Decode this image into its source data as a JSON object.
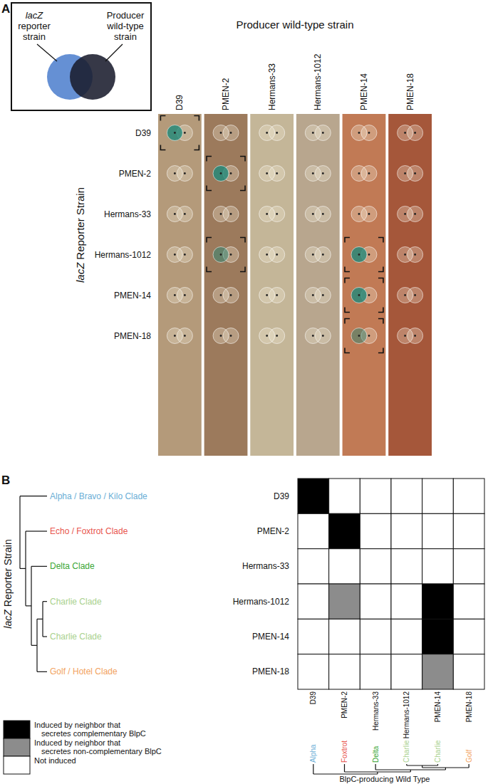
{
  "panel_a": {
    "label": "A",
    "inset_reporter": [
      "lacZ",
      "reporter",
      "strain"
    ],
    "inset_producer": [
      "Producer",
      "wild-type",
      "strain"
    ],
    "column_title": "Producer wild-type strain",
    "row_title": [
      "lacZ",
      "Reporter Strain"
    ]
  },
  "chart_data": {
    "type": "heatmap",
    "panel_label": "B",
    "rows": [
      "D39",
      "PMEN-2",
      "Hermans-33",
      "Hermans-1012",
      "PMEN-14",
      "PMEN-18"
    ],
    "columns": [
      "D39",
      "PMEN-2",
      "Hermans-33",
      "Hermans-1012",
      "PMEN-14",
      "PMEN-18"
    ],
    "row_title": [
      "lacZ",
      "Reporter Strain"
    ],
    "column_title": "BlpC-producing Wild Type",
    "row_clades": [
      {
        "name": "Alpha / Bravo / Kilo Clade",
        "color": "#6aaed6"
      },
      {
        "name": "Echo / Foxtrot Clade",
        "color": "#e8554e"
      },
      {
        "name": "Delta Clade",
        "color": "#3aa635"
      },
      {
        "name": "Charlie Clade",
        "color": "#a9d18e"
      },
      {
        "name": "Charlie Clade",
        "color": "#a9d18e"
      },
      {
        "name": "Golf / Hotel Clade",
        "color": "#f2a261"
      }
    ],
    "column_clades": [
      {
        "name": "Alpha",
        "color": "#6aaed6"
      },
      {
        "name": "Foxtrot",
        "color": "#e8554e"
      },
      {
        "name": "Delta",
        "color": "#3aa635"
      },
      {
        "name": "Charlie",
        "color": "#a9d18e"
      },
      {
        "name": "Charlie",
        "color": "#a9d18e"
      },
      {
        "name": "Golf",
        "color": "#f2a261"
      }
    ],
    "cells": [
      [
        2,
        0,
        0,
        0,
        0,
        0
      ],
      [
        0,
        2,
        0,
        0,
        0,
        0
      ],
      [
        0,
        0,
        0,
        0,
        0,
        0
      ],
      [
        0,
        1,
        0,
        0,
        2,
        0
      ],
      [
        0,
        0,
        0,
        0,
        2,
        0
      ],
      [
        0,
        0,
        0,
        0,
        1,
        0
      ]
    ],
    "legend_items": [
      {
        "value": 2,
        "color": "#000000",
        "label": [
          "Induced by neighbor that",
          "secretes complementary BlpC"
        ]
      },
      {
        "value": 1,
        "color": "#8c8c8c",
        "label": [
          "Induced by neighbor that",
          "secretes non-complementary BlpC"
        ]
      },
      {
        "value": 0,
        "color": "#ffffff",
        "label": [
          "Not induced"
        ]
      }
    ]
  }
}
